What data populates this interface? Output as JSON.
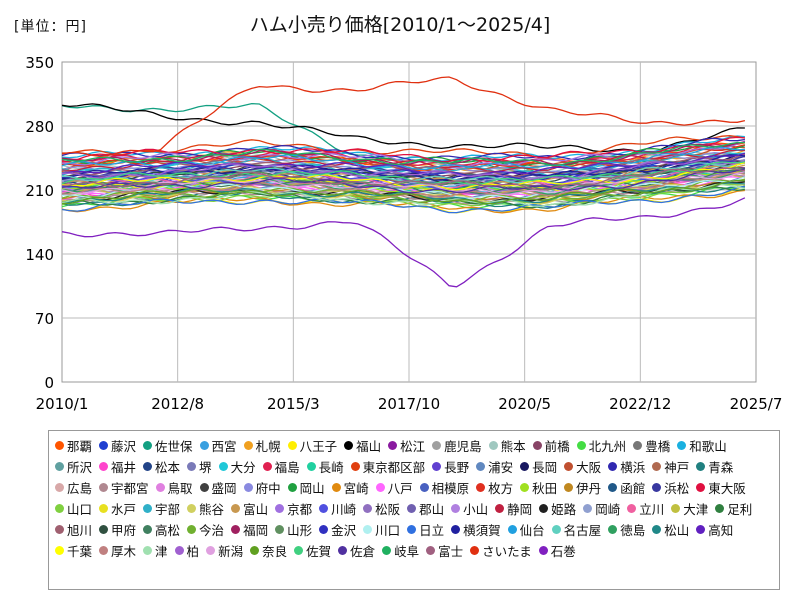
{
  "unit_label": "[単位：円]",
  "chart_data": {
    "type": "line",
    "title": "ハム小売り価格[2010/1～2025/4]",
    "xlabel": "",
    "ylabel": "",
    "x_range": [
      "2010/1",
      "2025/7"
    ],
    "x_ticks": [
      "2010/1",
      "2012/8",
      "2015/3",
      "2017/10",
      "2020/5",
      "2022/12",
      "2025/7"
    ],
    "ylim": [
      0,
      350
    ],
    "y_ticks": [
      0,
      70,
      140,
      210,
      280,
      350
    ],
    "grid": true,
    "legend_position": "bottom",
    "series": [
      {
        "name": "那覇",
        "color": "#ff5500",
        "approx_values": [
          230,
          245,
          250,
          240,
          235,
          240,
          250,
          260
        ]
      },
      {
        "name": "藤沢",
        "color": "#1f3fd0",
        "approx_values": [
          220,
          225,
          230,
          225,
          220,
          225,
          235,
          245
        ]
      },
      {
        "name": "佐世保",
        "color": "#13a082",
        "approx_values": [
          300,
          300,
          300,
          250,
          240,
          230,
          240,
          250
        ]
      },
      {
        "name": "西宮",
        "color": "#3aa0e0",
        "approx_values": [
          210,
          215,
          220,
          215,
          210,
          210,
          220,
          230
        ]
      },
      {
        "name": "札幌",
        "color": "#f0a020",
        "approx_values": [
          240,
          245,
          250,
          240,
          235,
          235,
          245,
          255
        ]
      },
      {
        "name": "八王子",
        "color": "#ffee00",
        "approx_values": [
          190,
          195,
          200,
          195,
          190,
          190,
          200,
          210
        ]
      },
      {
        "name": "福山",
        "color": "#000000",
        "approx_values": [
          305,
          290,
          285,
          265,
          260,
          255,
          255,
          275
        ]
      },
      {
        "name": "松江",
        "color": "#8a1aa0",
        "approx_values": [
          215,
          220,
          225,
          220,
          215,
          215,
          225,
          235
        ]
      },
      {
        "name": "鹿児島",
        "color": "#a0a0a0",
        "approx_values": [
          200,
          205,
          210,
          205,
          200,
          200,
          210,
          220
        ]
      },
      {
        "name": "熊本",
        "color": "#a0c8c0",
        "approx_values": [
          235,
          240,
          245,
          240,
          235,
          235,
          245,
          255
        ]
      },
      {
        "name": "前橋",
        "color": "#884466",
        "approx_values": [
          225,
          230,
          235,
          230,
          225,
          225,
          235,
          245
        ]
      },
      {
        "name": "北九州",
        "color": "#44dd44",
        "approx_values": [
          195,
          200,
          205,
          200,
          195,
          195,
          205,
          215
        ]
      },
      {
        "name": "豊橋",
        "color": "#777777",
        "approx_values": [
          210,
          215,
          220,
          215,
          210,
          210,
          220,
          230
        ]
      },
      {
        "name": "和歌山",
        "color": "#1ab0e0",
        "approx_values": [
          245,
          250,
          255,
          250,
          245,
          245,
          255,
          265
        ]
      },
      {
        "name": "所沢",
        "color": "#60a0a0",
        "approx_values": [
          215,
          220,
          225,
          220,
          215,
          215,
          225,
          235
        ]
      },
      {
        "name": "福井",
        "color": "#ff44cc",
        "approx_values": [
          205,
          210,
          215,
          210,
          205,
          205,
          215,
          225
        ]
      },
      {
        "name": "松本",
        "color": "#224488",
        "approx_values": [
          220,
          225,
          230,
          225,
          220,
          220,
          230,
          240
        ]
      },
      {
        "name": "堺",
        "color": "#7a7ab8",
        "approx_values": [
          200,
          205,
          210,
          205,
          200,
          200,
          210,
          220
        ]
      },
      {
        "name": "大分",
        "color": "#20c8d8",
        "approx_values": [
          230,
          235,
          240,
          235,
          230,
          230,
          240,
          250
        ]
      },
      {
        "name": "福島",
        "color": "#e02050",
        "approx_values": [
          240,
          245,
          250,
          245,
          240,
          240,
          250,
          260
        ]
      },
      {
        "name": "長崎",
        "color": "#20d0a0",
        "approx_values": [
          210,
          215,
          220,
          215,
          210,
          210,
          220,
          230
        ]
      },
      {
        "name": "東京都区部",
        "color": "#e04010",
        "approx_values": [
          250,
          255,
          260,
          255,
          250,
          250,
          260,
          270
        ]
      },
      {
        "name": "長野",
        "color": "#6040d0",
        "approx_values": [
          215,
          220,
          225,
          220,
          215,
          215,
          225,
          235
        ]
      },
      {
        "name": "浦安",
        "color": "#6088c0",
        "approx_values": [
          205,
          210,
          215,
          210,
          205,
          205,
          215,
          225
        ]
      },
      {
        "name": "長岡",
        "color": "#181860",
        "approx_values": [
          225,
          230,
          235,
          230,
          225,
          225,
          235,
          245
        ]
      },
      {
        "name": "大阪",
        "color": "#c05030",
        "approx_values": [
          235,
          240,
          245,
          240,
          235,
          235,
          245,
          255
        ]
      },
      {
        "name": "横浜",
        "color": "#3028b0",
        "approx_values": [
          245,
          250,
          255,
          250,
          245,
          245,
          255,
          265
        ]
      },
      {
        "name": "神戸",
        "color": "#b06a50",
        "approx_values": [
          220,
          225,
          230,
          225,
          220,
          220,
          230,
          240
        ]
      },
      {
        "name": "青森",
        "color": "#208080",
        "approx_values": [
          195,
          200,
          205,
          200,
          195,
          195,
          205,
          215
        ]
      },
      {
        "name": "広島",
        "color": "#d8a8a8",
        "approx_values": [
          210,
          215,
          220,
          215,
          210,
          210,
          220,
          230
        ]
      },
      {
        "name": "宇都宮",
        "color": "#b08890",
        "approx_values": [
          200,
          205,
          210,
          205,
          200,
          200,
          210,
          220
        ]
      },
      {
        "name": "鳥取",
        "color": "#e080e0",
        "approx_values": [
          215,
          220,
          225,
          220,
          215,
          215,
          225,
          235
        ]
      },
      {
        "name": "盛岡",
        "color": "#404040",
        "approx_values": [
          225,
          230,
          235,
          230,
          225,
          225,
          235,
          245
        ]
      },
      {
        "name": "府中",
        "color": "#8a8ae0",
        "approx_values": [
          230,
          235,
          240,
          235,
          230,
          230,
          240,
          250
        ]
      },
      {
        "name": "岡山",
        "color": "#20a040",
        "approx_values": [
          240,
          245,
          250,
          245,
          240,
          240,
          250,
          260
        ]
      },
      {
        "name": "宮崎",
        "color": "#e08a10",
        "approx_values": [
          190,
          195,
          200,
          195,
          190,
          190,
          200,
          210
        ]
      },
      {
        "name": "八戸",
        "color": "#ff66ff",
        "approx_values": [
          205,
          210,
          215,
          210,
          205,
          205,
          215,
          225
        ]
      },
      {
        "name": "相模原",
        "color": "#4860c0",
        "approx_values": [
          220,
          225,
          230,
          225,
          220,
          220,
          230,
          240
        ]
      },
      {
        "name": "枚方",
        "color": "#e03020",
        "approx_values": [
          235,
          240,
          245,
          240,
          235,
          235,
          245,
          255
        ]
      },
      {
        "name": "秋田",
        "color": "#a0e020",
        "approx_values": [
          210,
          215,
          220,
          215,
          210,
          210,
          220,
          230
        ]
      },
      {
        "name": "伊丹",
        "color": "#c08820",
        "approx_values": [
          200,
          205,
          210,
          205,
          200,
          200,
          210,
          220
        ]
      },
      {
        "name": "函館",
        "color": "#205888",
        "approx_values": [
          215,
          220,
          225,
          220,
          215,
          215,
          225,
          235
        ]
      },
      {
        "name": "浜松",
        "color": "#3838a0",
        "approx_values": [
          225,
          230,
          235,
          230,
          225,
          225,
          235,
          245
        ]
      },
      {
        "name": "東大阪",
        "color": "#e01040",
        "approx_values": [
          245,
          250,
          255,
          250,
          245,
          245,
          255,
          265
        ]
      },
      {
        "name": "山口",
        "color": "#80d040",
        "approx_values": [
          195,
          200,
          205,
          200,
          195,
          195,
          205,
          215
        ]
      },
      {
        "name": "水戸",
        "color": "#e8e020",
        "approx_values": [
          210,
          215,
          220,
          215,
          210,
          210,
          220,
          230
        ]
      },
      {
        "name": "宇部",
        "color": "#30b0c8",
        "approx_values": [
          230,
          235,
          240,
          235,
          230,
          230,
          240,
          250
        ]
      },
      {
        "name": "熊谷",
        "color": "#d0d060",
        "approx_values": [
          200,
          205,
          210,
          205,
          200,
          200,
          210,
          220
        ]
      },
      {
        "name": "富山",
        "color": "#c89850",
        "approx_values": [
          220,
          225,
          230,
          225,
          220,
          220,
          230,
          240
        ]
      },
      {
        "name": "京都",
        "color": "#a070e0",
        "approx_values": [
          240,
          245,
          250,
          245,
          240,
          240,
          250,
          260
        ]
      },
      {
        "name": "川崎",
        "color": "#5050e0",
        "approx_values": [
          215,
          220,
          225,
          220,
          215,
          215,
          225,
          235
        ]
      },
      {
        "name": "松阪",
        "color": "#9070c0",
        "approx_values": [
          205,
          210,
          215,
          210,
          205,
          205,
          215,
          225
        ]
      },
      {
        "name": "郡山",
        "color": "#7060b0",
        "approx_values": [
          225,
          230,
          235,
          230,
          225,
          225,
          235,
          245
        ]
      },
      {
        "name": "小山",
        "color": "#b080e0",
        "approx_values": [
          210,
          215,
          220,
          215,
          210,
          210,
          220,
          230
        ]
      },
      {
        "name": "静岡",
        "color": "#c02040",
        "approx_values": [
          235,
          240,
          245,
          240,
          235,
          235,
          245,
          255
        ]
      },
      {
        "name": "姫路",
        "color": "#202020",
        "approx_values": [
          200,
          205,
          210,
          205,
          200,
          200,
          210,
          220
        ]
      },
      {
        "name": "岡崎",
        "color": "#90a0d0",
        "approx_values": [
          220,
          225,
          230,
          225,
          220,
          220,
          230,
          240
        ]
      },
      {
        "name": "立川",
        "color": "#f060a0",
        "approx_values": [
          215,
          220,
          225,
          220,
          215,
          215,
          225,
          235
        ]
      },
      {
        "name": "大津",
        "color": "#c0c040",
        "approx_values": [
          205,
          210,
          215,
          210,
          205,
          205,
          215,
          225
        ]
      },
      {
        "name": "足利",
        "color": "#308040",
        "approx_values": [
          195,
          200,
          205,
          200,
          195,
          195,
          205,
          215
        ]
      },
      {
        "name": "旭川",
        "color": "#a06070",
        "approx_values": [
          230,
          235,
          240,
          235,
          230,
          230,
          240,
          250
        ]
      },
      {
        "name": "甲府",
        "color": "#305040",
        "approx_values": [
          220,
          225,
          230,
          225,
          220,
          220,
          230,
          240
        ]
      },
      {
        "name": "高松",
        "color": "#408060",
        "approx_values": [
          210,
          215,
          220,
          215,
          210,
          210,
          220,
          230
        ]
      },
      {
        "name": "今治",
        "color": "#70b030",
        "approx_values": [
          200,
          205,
          210,
          205,
          200,
          200,
          210,
          220
        ]
      },
      {
        "name": "福岡",
        "color": "#a02060",
        "approx_values": [
          240,
          245,
          250,
          245,
          240,
          240,
          250,
          260
        ]
      },
      {
        "name": "山形",
        "color": "#609060",
        "approx_values": [
          215,
          220,
          225,
          220,
          215,
          215,
          225,
          235
        ]
      },
      {
        "name": "金沢",
        "color": "#3030c0",
        "approx_values": [
          225,
          230,
          235,
          230,
          225,
          225,
          235,
          245
        ]
      },
      {
        "name": "川口",
        "color": "#b0f0f0",
        "approx_values": [
          205,
          210,
          215,
          210,
          205,
          205,
          215,
          225
        ]
      },
      {
        "name": "日立",
        "color": "#3070e0",
        "approx_values": [
          190,
          195,
          200,
          195,
          190,
          190,
          200,
          210
        ]
      },
      {
        "name": "横須賀",
        "color": "#2020a0",
        "approx_values": [
          225,
          230,
          235,
          230,
          225,
          225,
          235,
          245
        ]
      },
      {
        "name": "仙台",
        "color": "#20a0e0",
        "approx_values": [
          235,
          240,
          245,
          240,
          235,
          235,
          245,
          255
        ]
      },
      {
        "name": "名古屋",
        "color": "#60d0c0",
        "approx_values": [
          220,
          225,
          230,
          225,
          220,
          220,
          230,
          240
        ]
      },
      {
        "name": "徳島",
        "color": "#30a060",
        "approx_values": [
          210,
          215,
          220,
          215,
          210,
          210,
          220,
          230
        ]
      },
      {
        "name": "松山",
        "color": "#208888",
        "approx_values": [
          200,
          205,
          210,
          205,
          200,
          200,
          210,
          220
        ]
      },
      {
        "name": "高知",
        "color": "#6020c0",
        "approx_values": [
          230,
          235,
          240,
          235,
          230,
          230,
          240,
          250
        ]
      },
      {
        "name": "千葉",
        "color": "#ffff00",
        "approx_values": [
          215,
          220,
          225,
          220,
          215,
          215,
          225,
          235
        ]
      },
      {
        "name": "厚木",
        "color": "#c08080",
        "approx_values": [
          205,
          210,
          215,
          210,
          205,
          205,
          215,
          225
        ]
      },
      {
        "name": "津",
        "color": "#a0e0b0",
        "approx_values": [
          195,
          200,
          205,
          200,
          195,
          195,
          205,
          215
        ]
      },
      {
        "name": "柏",
        "color": "#a060d0",
        "approx_values": [
          225,
          230,
          235,
          230,
          225,
          225,
          235,
          245
        ]
      },
      {
        "name": "新潟",
        "color": "#e0a0e0",
        "approx_values": [
          210,
          215,
          220,
          215,
          210,
          210,
          220,
          230
        ]
      },
      {
        "name": "奈良",
        "color": "#60a020",
        "approx_values": [
          200,
          205,
          210,
          205,
          200,
          200,
          210,
          220
        ]
      },
      {
        "name": "佐賀",
        "color": "#40d080",
        "approx_values": [
          220,
          225,
          230,
          225,
          220,
          220,
          230,
          240
        ]
      },
      {
        "name": "佐倉",
        "color": "#5030a0",
        "approx_values": [
          210,
          215,
          220,
          215,
          210,
          210,
          220,
          230
        ]
      },
      {
        "name": "岐阜",
        "color": "#20b060",
        "approx_values": [
          240,
          245,
          250,
          245,
          240,
          240,
          250,
          260
        ]
      },
      {
        "name": "富士",
        "color": "#a06080",
        "approx_values": [
          215,
          220,
          225,
          220,
          215,
          215,
          225,
          235
        ]
      },
      {
        "name": "さいたま",
        "color": "#e03010",
        "approx_values": [
          250,
          255,
          325,
          320,
          330,
          300,
          280,
          290
        ]
      },
      {
        "name": "石巻",
        "color": "#8020c0",
        "approx_values": [
          165,
          160,
          170,
          175,
          105,
          170,
          180,
          200
        ]
      }
    ]
  }
}
